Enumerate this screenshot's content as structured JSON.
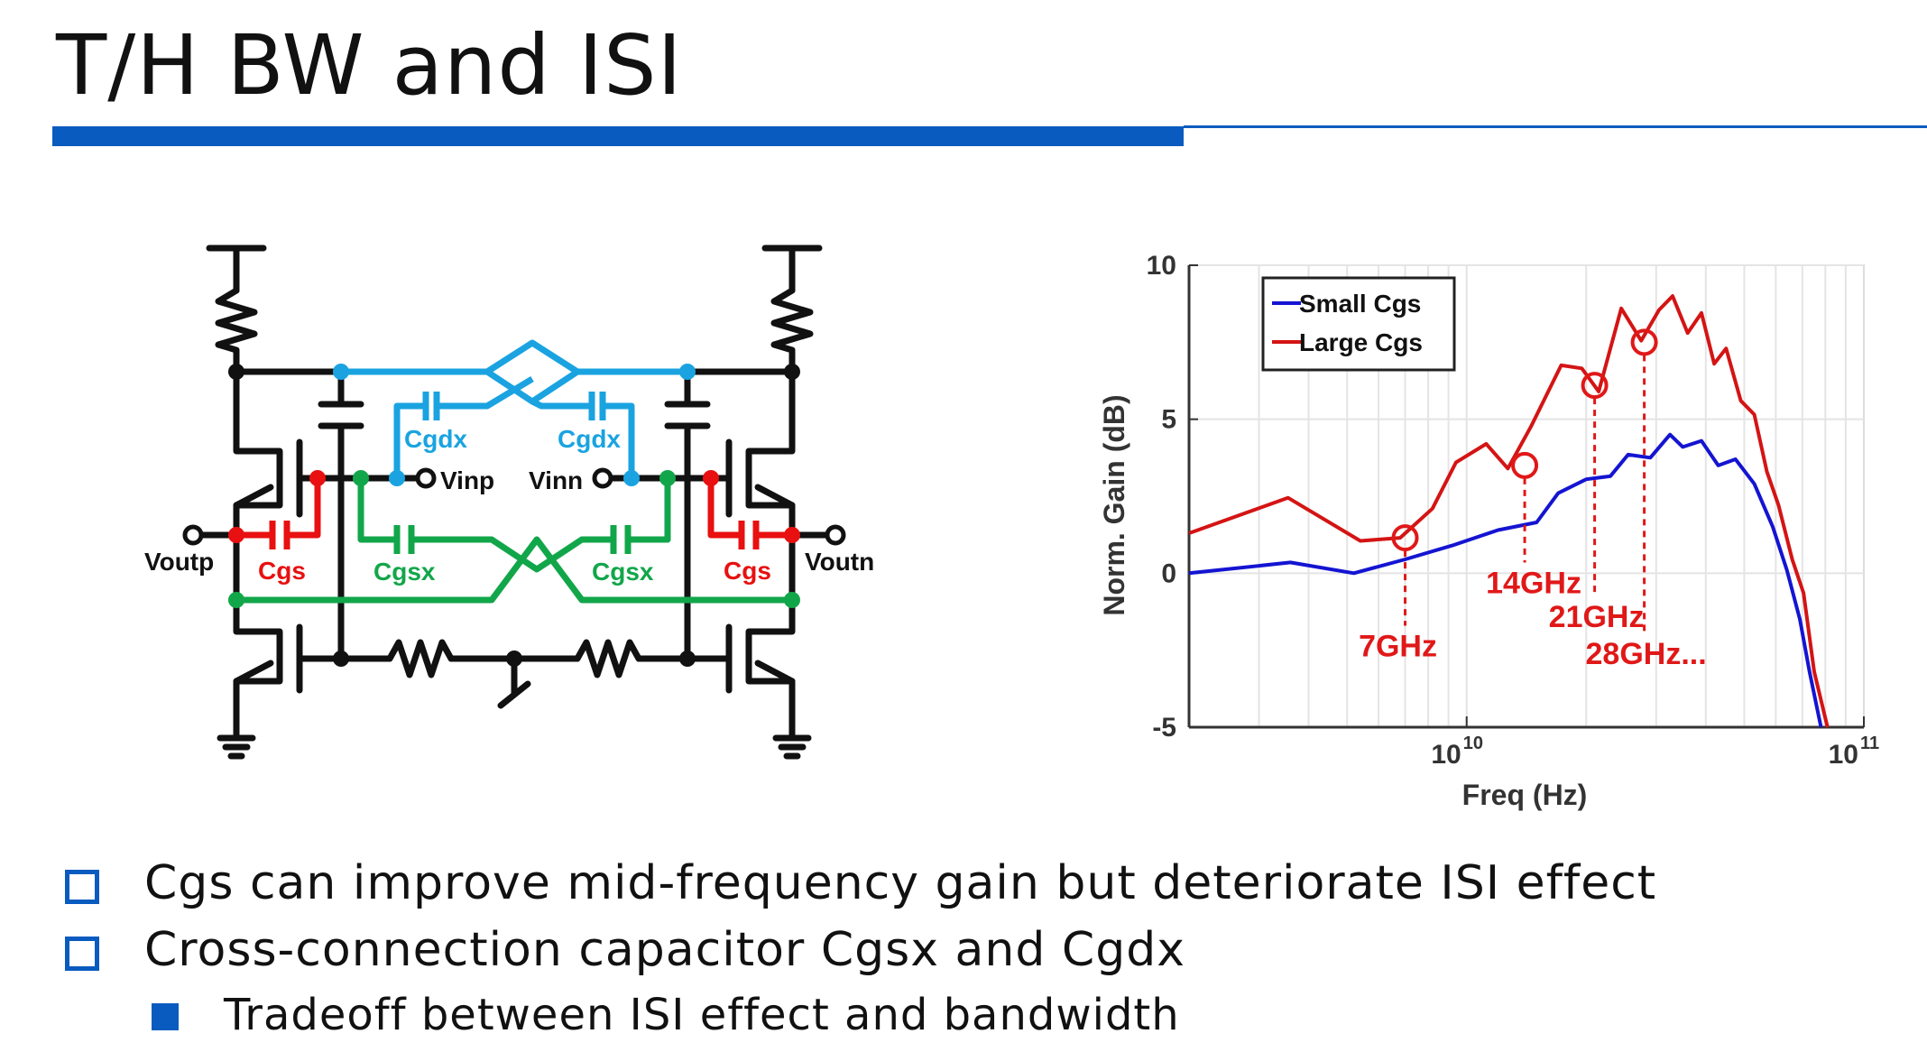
{
  "slide": {
    "title": "T/H BW and ISI",
    "bullets": [
      "Cgs can improve mid-frequency gain but deteriorate ISI effect",
      "Cross-connection capacitor Cgsx and Cgdx"
    ],
    "sub_bullets": [
      "Tradeoff between ISI effect and bandwidth"
    ],
    "accent_color": "#0a5bbf"
  },
  "circuit": {
    "labels": {
      "cgdx_left": "Cgdx",
      "cgdx_right": "Cgdx",
      "vinp": "Vinp",
      "vinn": "Vinn",
      "voutp": "Voutp",
      "voutn": "Voutn",
      "cgs_left": "Cgs",
      "cgs_right": "Cgs",
      "cgsx_left": "Cgsx",
      "cgsx_right": "Cgsx"
    },
    "colors": {
      "cgdx": "#1aa3e0",
      "cgs": "#e81010",
      "cgsx": "#12a64a",
      "wire": "#111111"
    }
  },
  "chart_data": {
    "type": "line",
    "xlabel": "Freq (Hz)",
    "ylabel": "Norm. Gain (dB)",
    "xscale": "log",
    "xlim": [
      2000000000.0,
      100000000000.0
    ],
    "ylim": [
      -5,
      10
    ],
    "yticks": [
      "10",
      "5",
      "0",
      "-5"
    ],
    "xticks": [
      {
        "base": "10",
        "exp": "10",
        "value": 10000000000.0
      },
      {
        "base": "10",
        "exp": "11",
        "value": 100000000000.0
      }
    ],
    "grid": true,
    "legend_position": "top-left",
    "series": [
      {
        "name": "Small Cgs",
        "color": "#1414d2",
        "points": [
          [
            2000000000.0,
            0.0
          ],
          [
            3600000000.0,
            0.35
          ],
          [
            5200000000.0,
            0.0
          ],
          [
            7000000000.0,
            0.45
          ],
          [
            9200000000.0,
            0.9
          ],
          [
            12000000000.0,
            1.4
          ],
          [
            15000000000.0,
            1.65
          ],
          [
            17000000000.0,
            2.6
          ],
          [
            20000000000.0,
            3.05
          ],
          [
            23000000000.0,
            3.15
          ],
          [
            25500000000.0,
            3.85
          ],
          [
            29000000000.0,
            3.75
          ],
          [
            32500000000.0,
            4.5
          ],
          [
            35000000000.0,
            4.1
          ],
          [
            39000000000.0,
            4.3
          ],
          [
            43000000000.0,
            3.5
          ],
          [
            47500000000.0,
            3.7
          ],
          [
            53000000000.0,
            2.9
          ],
          [
            59000000000.0,
            1.5
          ],
          [
            64000000000.0,
            0.1
          ],
          [
            69000000000.0,
            -1.5
          ],
          [
            73000000000.0,
            -3.2
          ],
          [
            78000000000.0,
            -5.0
          ]
        ]
      },
      {
        "name": "Large Cgs",
        "color": "#d41414",
        "points": [
          [
            2000000000.0,
            1.3
          ],
          [
            3550000000.0,
            2.45
          ],
          [
            5400000000.0,
            1.05
          ],
          [
            6800000000.0,
            1.15
          ],
          [
            8200000000.0,
            2.1
          ],
          [
            9400000000.0,
            3.6
          ],
          [
            11200000000.0,
            4.2
          ],
          [
            12700000000.0,
            3.4
          ],
          [
            14500000000.0,
            4.75
          ],
          [
            17300000000.0,
            6.75
          ],
          [
            19500000000.0,
            6.65
          ],
          [
            21500000000.0,
            5.9
          ],
          [
            24500000000.0,
            8.6
          ],
          [
            27500000000.0,
            7.55
          ],
          [
            30500000000.0,
            8.55
          ],
          [
            33000000000.0,
            9.0
          ],
          [
            36000000000.0,
            7.8
          ],
          [
            39000000000.0,
            8.45
          ],
          [
            42000000000.0,
            6.8
          ],
          [
            45000000000.0,
            7.3
          ],
          [
            49000000000.0,
            5.6
          ],
          [
            53000000000.0,
            5.15
          ],
          [
            57000000000.0,
            3.3
          ],
          [
            61000000000.0,
            2.2
          ],
          [
            66000000000.0,
            0.45
          ],
          [
            70500000000.0,
            -0.65
          ],
          [
            75000000000.0,
            -3.2
          ],
          [
            81000000000.0,
            -5.0
          ]
        ]
      }
    ],
    "markers": [
      {
        "label": "7GHz",
        "x": 7000000000.0,
        "y": 1.15
      },
      {
        "label": "14GHz",
        "x": 14000000000.0,
        "y": 3.5
      },
      {
        "label": "21GHz",
        "x": 21000000000.0,
        "y": 6.1
      },
      {
        "label": "28GHz...",
        "x": 28000000000.0,
        "y": 7.5
      }
    ],
    "marker_color": "#e01818"
  }
}
